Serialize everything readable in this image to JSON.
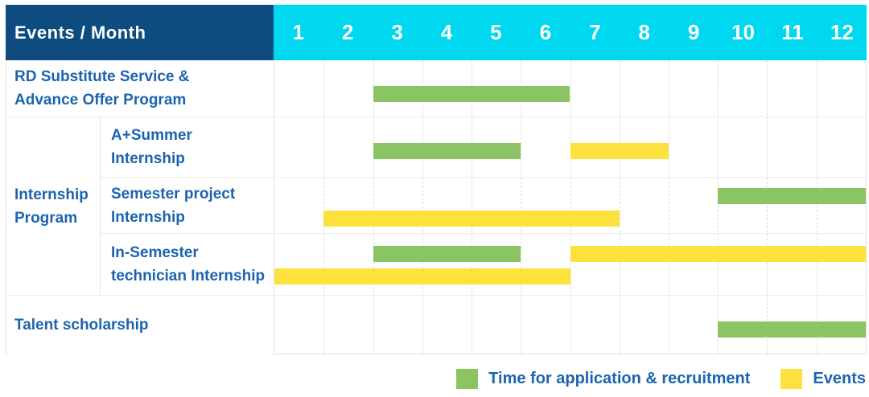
{
  "header": {
    "title": "Events / Month",
    "months": [
      "1",
      "2",
      "3",
      "4",
      "5",
      "6",
      "7",
      "8",
      "9",
      "10",
      "11",
      "12"
    ]
  },
  "labels": {
    "rd_line1": "RD Substitute Service &",
    "rd_line2": "Advance Offer Program",
    "group_line1": "Internship",
    "group_line2": "Program",
    "sub1_line1": "A+Summer",
    "sub1_line2": "Internship",
    "sub2_line1": "Semester project",
    "sub2_line2": "Internship",
    "sub3_line1": "In-Semester",
    "sub3_line2": "technician Internship",
    "talent": "Talent scholarship"
  },
  "legend": {
    "items": [
      {
        "label": "Time for application & recruitment",
        "kind": "application",
        "color": "#8bc563"
      },
      {
        "label": "Events",
        "kind": "event",
        "color": "#fde23e"
      }
    ]
  },
  "colors": {
    "header_navy": "#0e4c80",
    "header_cyan": "#00d8ef",
    "label_blue": "#1c64ae",
    "bar_green": "#8bc563",
    "bar_yellow": "#fde23e",
    "grid_gray": "#dcdcdc"
  },
  "chart_data": {
    "type": "bar",
    "subtype": "gantt",
    "title": "Events / Month",
    "x_axis": {
      "label": "Month",
      "ticks": [
        1,
        2,
        3,
        4,
        5,
        6,
        7,
        8,
        9,
        10,
        11,
        12
      ]
    },
    "grid": true,
    "legend_position": "bottom-right",
    "series_kinds": {
      "application": {
        "label": "Time for application & recruitment",
        "color": "#8bc563"
      },
      "event": {
        "label": "Events",
        "color": "#fde23e"
      }
    },
    "rows": [
      {
        "name": "RD Substitute Service & Advance Offer Program",
        "group": null,
        "segments": [
          {
            "kind": "application",
            "start": 3,
            "end": 6
          }
        ]
      },
      {
        "name": "A+Summer Internship",
        "group": "Internship Program",
        "segments": [
          {
            "kind": "application",
            "start": 3,
            "end": 5
          },
          {
            "kind": "event",
            "start": 7,
            "end": 8
          }
        ]
      },
      {
        "name": "Semester project Internship",
        "group": "Internship Program",
        "segments": [
          {
            "kind": "application",
            "start": 10,
            "end": 12
          },
          {
            "kind": "event",
            "start": 2,
            "end": 7
          }
        ]
      },
      {
        "name": "In-Semester technician Internship",
        "group": "Internship Program",
        "segments": [
          {
            "kind": "application",
            "start": 3,
            "end": 5
          },
          {
            "kind": "event",
            "start": 7,
            "end": 12
          },
          {
            "kind": "event",
            "start": 1,
            "end": 6
          }
        ]
      },
      {
        "name": "Talent scholarship",
        "group": null,
        "segments": [
          {
            "kind": "application",
            "start": 10,
            "end": 12
          }
        ]
      }
    ]
  }
}
